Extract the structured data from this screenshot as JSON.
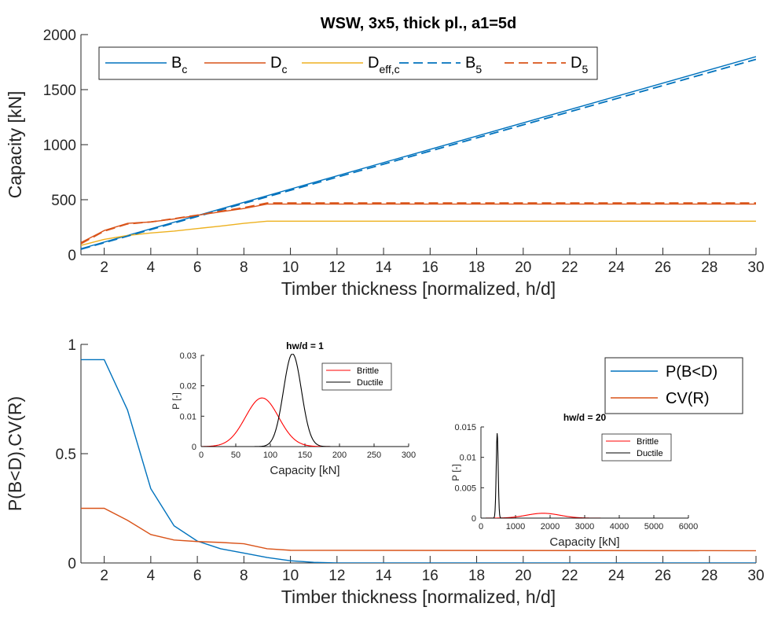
{
  "colors": {
    "blue": "#0072BD",
    "orange": "#D95319",
    "yellow": "#EDB120",
    "red": "#FF0000",
    "black": "#000000",
    "axis": "#262626"
  },
  "chart_data": [
    {
      "id": "top",
      "type": "line",
      "title": "WSW, 3x5, thick pl., a1=5d",
      "xlabel": "Timber thickness [normalized, h/d]",
      "ylabel": "Capacity [kN]",
      "xlim": [
        1,
        30
      ],
      "ylim": [
        0,
        2000
      ],
      "xticks": [
        2,
        4,
        6,
        8,
        10,
        12,
        14,
        16,
        18,
        20,
        22,
        24,
        26,
        28,
        30
      ],
      "yticks": [
        0,
        500,
        1000,
        1500,
        2000
      ],
      "grid": false,
      "legend_position": "top-left, horizontal",
      "series": [
        {
          "name": "B",
          "sub": "c",
          "color": "#0072BD",
          "dash": "solid",
          "x": [
            1,
            30
          ],
          "y": [
            55,
            1800
          ]
        },
        {
          "name": "D",
          "sub": "c",
          "color": "#D95319",
          "dash": "solid",
          "x": [
            1,
            2,
            3,
            3.5,
            4,
            5,
            6,
            7,
            8,
            9,
            30
          ],
          "y": [
            110,
            220,
            285,
            292,
            298,
            325,
            358,
            390,
            420,
            460,
            460
          ]
        },
        {
          "name": "D",
          "sub": "eff,c",
          "color": "#EDB120",
          "dash": "solid",
          "x": [
            1,
            2,
            3,
            4,
            5,
            6,
            7,
            8,
            9,
            30
          ],
          "y": [
            85,
            140,
            175,
            198,
            215,
            238,
            260,
            285,
            305,
            305
          ]
        },
        {
          "name": "B",
          "sub": "5",
          "color": "#0072BD",
          "dash": "dashed",
          "x": [
            1,
            30
          ],
          "y": [
            50,
            1775
          ]
        },
        {
          "name": "D",
          "sub": "5",
          "color": "#D95319",
          "dash": "dashed",
          "x": [
            1,
            2,
            3,
            4,
            5,
            6,
            7,
            8,
            9,
            30
          ],
          "y": [
            100,
            215,
            280,
            298,
            328,
            360,
            395,
            428,
            470,
            470
          ]
        }
      ]
    },
    {
      "id": "bottom",
      "type": "line",
      "title": "",
      "xlabel": "Timber thickness [normalized, h/d]",
      "ylabel": "P(B<D),CV(R)",
      "xlim": [
        1,
        30
      ],
      "ylim": [
        0,
        1
      ],
      "xticks": [
        2,
        4,
        6,
        8,
        10,
        12,
        14,
        16,
        18,
        20,
        22,
        24,
        26,
        28,
        30
      ],
      "yticks": [
        0,
        0.5,
        1
      ],
      "grid": false,
      "legend_position": "right",
      "series": [
        {
          "name": "P(B<D)",
          "color": "#0072BD",
          "dash": "solid",
          "x": [
            1,
            2,
            3,
            4,
            5,
            6,
            7,
            8,
            9,
            10,
            11,
            12,
            30
          ],
          "y": [
            0.93,
            0.93,
            0.7,
            0.34,
            0.17,
            0.1,
            0.065,
            0.045,
            0.025,
            0.01,
            0.003,
            0.0,
            0.0
          ]
        },
        {
          "name": "CV(R)",
          "color": "#D95319",
          "dash": "solid",
          "x": [
            1,
            2,
            3,
            4,
            5,
            6,
            7,
            8,
            9,
            10,
            30
          ],
          "y": [
            0.25,
            0.25,
            0.195,
            0.13,
            0.105,
            0.098,
            0.094,
            0.088,
            0.065,
            0.058,
            0.056
          ]
        }
      ]
    },
    {
      "id": "inset1",
      "type": "line",
      "title": "hw/d = 1",
      "xlabel": "Capacity [kN]",
      "ylabel": "P [-]",
      "xlim": [
        0,
        300
      ],
      "ylim": [
        0,
        0.03
      ],
      "xticks": [
        0,
        50,
        100,
        150,
        200,
        250,
        300
      ],
      "yticks": [
        0,
        0.01,
        0.02,
        0.03
      ],
      "legend_position": "top-right",
      "series": [
        {
          "name": "Brittle",
          "color": "#FF0000",
          "dash": "solid",
          "peak_x": 88,
          "peak_y": 0.016,
          "sigma": 24
        },
        {
          "name": "Ductile",
          "color": "#000000",
          "dash": "solid",
          "peak_x": 132,
          "peak_y": 0.0305,
          "sigma": 13
        }
      ]
    },
    {
      "id": "inset2",
      "type": "line",
      "title": "hw/d = 20",
      "xlabel": "Capacity [kN]",
      "ylabel": "P [-]",
      "xlim": [
        0,
        6000
      ],
      "ylim": [
        0,
        0.015
      ],
      "xticks": [
        0,
        1000,
        2000,
        3000,
        4000,
        5000,
        6000
      ],
      "yticks": [
        0,
        0.005,
        0.01,
        0.015
      ],
      "legend_position": "top-right",
      "series": [
        {
          "name": "Brittle",
          "color": "#FF0000",
          "dash": "solid",
          "peak_x": 1800,
          "peak_y": 0.0008,
          "sigma": 480
        },
        {
          "name": "Ductile",
          "color": "#000000",
          "dash": "solid",
          "peak_x": 470,
          "peak_y": 0.014,
          "sigma": 28
        }
      ]
    }
  ]
}
